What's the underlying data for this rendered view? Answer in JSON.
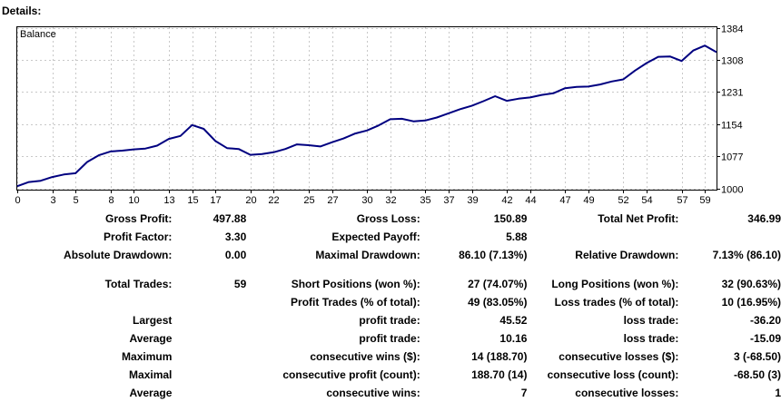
{
  "header": {
    "title": "Details:"
  },
  "chart_data": {
    "type": "line",
    "title": "Balance",
    "xlabel": "",
    "ylabel": "",
    "x_ticks": [
      0,
      3,
      5,
      8,
      10,
      13,
      15,
      17,
      20,
      22,
      25,
      27,
      30,
      32,
      35,
      37,
      39,
      42,
      44,
      47,
      49,
      52,
      54,
      57,
      59
    ],
    "y_ticks": [
      1000,
      1077,
      1154,
      1231,
      1308,
      1384
    ],
    "xlim": [
      0,
      60
    ],
    "ylim": [
      1000,
      1400
    ],
    "grid": true,
    "line_color": "#000080",
    "series": [
      {
        "x": [
          0,
          1,
          2,
          3,
          4,
          5,
          6,
          7,
          8,
          9,
          10,
          11,
          12,
          13,
          14,
          15,
          16,
          17,
          18,
          19,
          20,
          21,
          22,
          23,
          24,
          25,
          26,
          27,
          28,
          29,
          30,
          31,
          32,
          33,
          34,
          35,
          36,
          37,
          38,
          39,
          40,
          41,
          42,
          43,
          44,
          45,
          46,
          47,
          48,
          49,
          50,
          51,
          52,
          53,
          54,
          55,
          56,
          57,
          58,
          59,
          60
        ],
        "y": [
          1006,
          1016,
          1019,
          1028,
          1034,
          1037,
          1064,
          1080,
          1089,
          1091,
          1094,
          1096,
          1103,
          1119,
          1126,
          1152,
          1143,
          1114,
          1097,
          1095,
          1081,
          1083,
          1087,
          1095,
          1106,
          1104,
          1101,
          1111,
          1120,
          1132,
          1139,
          1151,
          1166,
          1167,
          1161,
          1163,
          1170,
          1180,
          1190,
          1198,
          1209,
          1221,
          1210,
          1215,
          1218,
          1224,
          1228,
          1240,
          1243,
          1244,
          1249,
          1256,
          1261,
          1282,
          1300,
          1315,
          1316,
          1305,
          1330,
          1342,
          1326
        ]
      }
    ]
  },
  "stats": {
    "gross_profit": {
      "label": "Gross Profit:",
      "value": "497.88"
    },
    "gross_loss": {
      "label": "Gross Loss:",
      "value": "150.89"
    },
    "total_net_profit": {
      "label": "Total Net Profit:",
      "value": "346.99"
    },
    "profit_factor": {
      "label": "Profit Factor:",
      "value": "3.30"
    },
    "expected_payoff": {
      "label": "Expected Payoff:",
      "value": "5.88"
    },
    "absolute_drawdown": {
      "label": "Absolute Drawdown:",
      "value": "0.00"
    },
    "maximal_drawdown": {
      "label": "Maximal Drawdown:",
      "value": "86.10 (7.13%)"
    },
    "relative_drawdown": {
      "label": "Relative Drawdown:",
      "value": "7.13% (86.10)"
    },
    "total_trades": {
      "label": "Total Trades:",
      "value": "59"
    },
    "short_positions": {
      "label": "Short Positions (won %):",
      "value": "27 (74.07%)"
    },
    "long_positions": {
      "label": "Long Positions (won %):",
      "value": "32 (90.63%)"
    },
    "profit_trades": {
      "label": "Profit Trades (% of total):",
      "value": "49 (83.05%)"
    },
    "loss_trades": {
      "label": "Loss trades (% of total):",
      "value": "10 (16.95%)"
    },
    "largest": {
      "label": "Largest",
      "profit_label": "profit trade:",
      "profit_value": "45.52",
      "loss_label": "loss trade:",
      "loss_value": "-36.20"
    },
    "average": {
      "label": "Average",
      "profit_label": "profit trade:",
      "profit_value": "10.16",
      "loss_label": "loss trade:",
      "loss_value": "-15.09"
    },
    "maximum": {
      "label": "Maximum",
      "profit_label": "consecutive wins ($):",
      "profit_value": "14 (188.70)",
      "loss_label": "consecutive losses ($):",
      "loss_value": "3 (-68.50)"
    },
    "maximal": {
      "label": "Maximal",
      "profit_label": "consecutive profit (count):",
      "profit_value": "188.70 (14)",
      "loss_label": "consecutive loss (count):",
      "loss_value": "-68.50 (3)"
    },
    "average_consecutive": {
      "label": "Average",
      "profit_label": "consecutive wins:",
      "profit_value": "7",
      "loss_label": "consecutive losses:",
      "loss_value": "1"
    }
  }
}
